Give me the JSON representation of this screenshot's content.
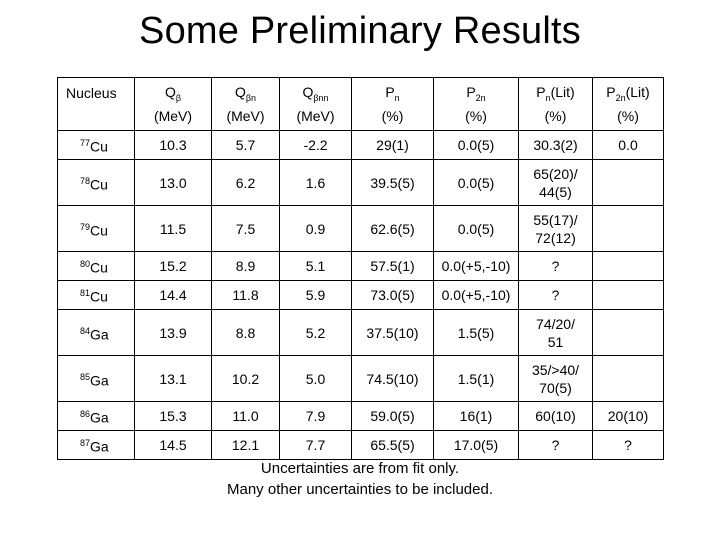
{
  "title": "Some Preliminary Results",
  "table": {
    "headers": [
      {
        "main": "Nucleus",
        "sub": "",
        "suffix": "",
        "unit": ""
      },
      {
        "main": "Q",
        "sub": "β",
        "suffix": "",
        "unit": "(MeV)"
      },
      {
        "main": "Q",
        "sub": "βn",
        "suffix": "",
        "unit": "(MeV)"
      },
      {
        "main": "Q",
        "sub": "βnn",
        "suffix": "",
        "unit": "(MeV)"
      },
      {
        "main": "P",
        "sub": "n",
        "suffix": "",
        "unit": "(%)"
      },
      {
        "main": "P",
        "sub": "2n",
        "suffix": "",
        "unit": "(%)"
      },
      {
        "main": "P",
        "sub": "n",
        "suffix": "(Lit)",
        "unit": "(%)"
      },
      {
        "main": "P",
        "sub": "2n",
        "suffix": "(Lit)",
        "unit": "(%)"
      }
    ],
    "rows": [
      {
        "mass": "77",
        "element": "Cu",
        "qb": "10.3",
        "qbn": "5.7",
        "qbnn": "-2.2",
        "pn": "29(1)",
        "p2n": "0.0(5)",
        "pn_lit": [
          "30.3(2)"
        ],
        "p2n_lit": "0.0"
      },
      {
        "mass": "78",
        "element": "Cu",
        "qb": "13.0",
        "qbn": "6.2",
        "qbnn": "1.6",
        "pn": "39.5(5)",
        "p2n": "0.0(5)",
        "pn_lit": [
          "65(20)/",
          "44(5)"
        ],
        "p2n_lit": ""
      },
      {
        "mass": "79",
        "element": "Cu",
        "qb": "11.5",
        "qbn": "7.5",
        "qbnn": "0.9",
        "pn": "62.6(5)",
        "p2n": "0.0(5)",
        "pn_lit": [
          "55(17)/",
          "72(12)"
        ],
        "p2n_lit": ""
      },
      {
        "mass": "80",
        "element": "Cu",
        "qb": "15.2",
        "qbn": "8.9",
        "qbnn": "5.1",
        "pn": "57.5(1)",
        "p2n": "0.0(+5,-10)",
        "pn_lit": [
          "?"
        ],
        "p2n_lit": ""
      },
      {
        "mass": "81",
        "element": "Cu",
        "qb": "14.4",
        "qbn": "11.8",
        "qbnn": "5.9",
        "pn": "73.0(5)",
        "p2n": "0.0(+5,-10)",
        "pn_lit": [
          "?"
        ],
        "p2n_lit": ""
      },
      {
        "mass": "84",
        "element": "Ga",
        "qb": "13.9",
        "qbn": "8.8",
        "qbnn": "5.2",
        "pn": "37.5(10)",
        "p2n": "1.5(5)",
        "pn_lit": [
          "74/20/",
          "51"
        ],
        "p2n_lit": ""
      },
      {
        "mass": "85",
        "element": "Ga",
        "qb": "13.1",
        "qbn": "10.2",
        "qbnn": "5.0",
        "pn": "74.5(10)",
        "p2n": "1.5(1)",
        "pn_lit": [
          "35/>40/",
          "70(5)"
        ],
        "p2n_lit": ""
      },
      {
        "mass": "86",
        "element": "Ga",
        "qb": "15.3",
        "qbn": "11.0",
        "qbnn": "7.9",
        "pn": "59.0(5)",
        "p2n": "16(1)",
        "pn_lit": [
          "60(10)"
        ],
        "p2n_lit": "20(10)"
      },
      {
        "mass": "87",
        "element": "Ga",
        "qb": "14.5",
        "qbn": "12.1",
        "qbnn": "7.7",
        "pn": "65.5(5)",
        "p2n": "17.0(5)",
        "pn_lit": [
          "?"
        ],
        "p2n_lit": "?"
      }
    ]
  },
  "notes": [
    "Uncertainties are from fit only.",
    "Many other uncertainties to be included."
  ]
}
